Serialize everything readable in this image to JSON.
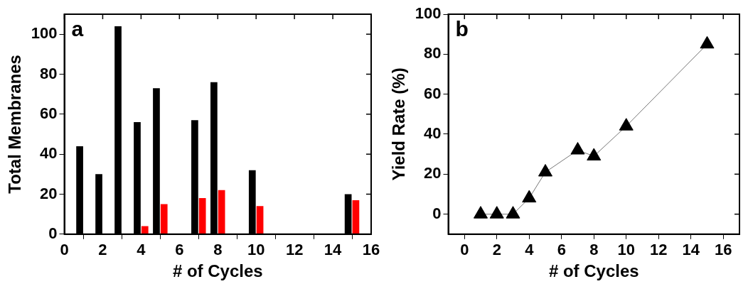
{
  "chart_data": [
    {
      "type": "bar",
      "xlabel": "# of Cycles",
      "ylabel": "Total Membranes",
      "annotations": [
        "a"
      ],
      "x": [
        1,
        2,
        3,
        4,
        5,
        7,
        8,
        10,
        15
      ],
      "series": [
        {
          "color": "#000000",
          "values": [
            44,
            30,
            104,
            56,
            73,
            57,
            76,
            32,
            20
          ]
        },
        {
          "color": "#ff0000",
          "values": [
            0,
            0,
            0,
            4,
            15,
            18,
            22,
            14,
            17
          ]
        }
      ],
      "xlim": [
        0,
        16
      ],
      "xticks": [
        0,
        2,
        4,
        6,
        8,
        10,
        12,
        14,
        16
      ],
      "ylim": [
        0,
        110
      ],
      "yticks": [
        0,
        20,
        40,
        60,
        80,
        100
      ],
      "grid": false
    },
    {
      "type": "line",
      "xlabel": "# of Cycles",
      "ylabel": "Yield Rate (%)",
      "annotations": [
        "b"
      ],
      "x": [
        1,
        2,
        3,
        4,
        5,
        7,
        8,
        10,
        15
      ],
      "series": [
        {
          "color": "#000000",
          "values": [
            0,
            0,
            0,
            8,
            21,
            32,
            29,
            44,
            85
          ]
        }
      ],
      "marker": "triangle",
      "xlim": [
        -1,
        17
      ],
      "xticks": [
        0,
        2,
        4,
        6,
        8,
        10,
        12,
        14,
        16
      ],
      "ylim": [
        -10,
        100
      ],
      "yticks": [
        0,
        20,
        40,
        60,
        80,
        100
      ],
      "grid": false
    }
  ]
}
